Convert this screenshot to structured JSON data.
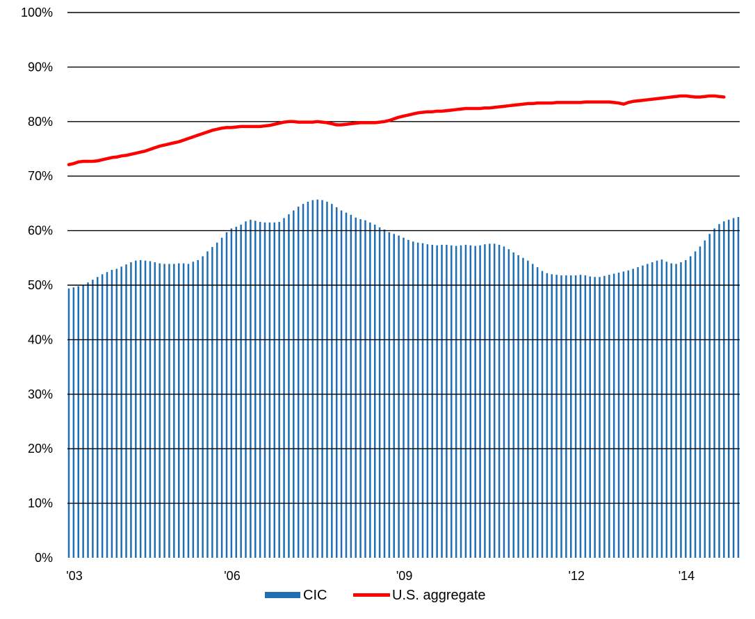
{
  "chart_data": {
    "type": "bar",
    "title": "",
    "xlabel": "",
    "ylabel": "",
    "ylim": [
      0,
      100
    ],
    "y_ticks": [
      "0%",
      "10%",
      "20%",
      "30%",
      "40%",
      "50%",
      "60%",
      "70%",
      "80%",
      "90%",
      "100%"
    ],
    "x_tick_labels": [
      {
        "label": "'03",
        "month_index": 0
      },
      {
        "label": "'06",
        "month_index": 33
      },
      {
        "label": "'09",
        "month_index": 69
      },
      {
        "label": "'12",
        "month_index": 105
      },
      {
        "label": "'14",
        "month_index": 128
      }
    ],
    "grid": true,
    "legend_position": "bottom",
    "series": [
      {
        "name": "CIC",
        "type": "bar",
        "color": "#1f6fb2",
        "values": [
          49.4,
          49.6,
          49.8,
          50.0,
          50.5,
          51.0,
          51.5,
          52.0,
          52.4,
          52.8,
          53.0,
          53.4,
          53.8,
          54.2,
          54.5,
          54.6,
          54.5,
          54.4,
          54.2,
          54.0,
          53.9,
          53.9,
          53.9,
          54.0,
          54.0,
          53.9,
          54.3,
          54.6,
          55.3,
          56.2,
          57.0,
          57.8,
          58.7,
          59.7,
          60.4,
          60.7,
          61.1,
          61.7,
          62.0,
          61.8,
          61.6,
          61.5,
          61.5,
          61.5,
          61.6,
          62.3,
          63.0,
          63.7,
          64.4,
          64.9,
          65.3,
          65.6,
          65.7,
          65.6,
          65.3,
          64.9,
          64.3,
          63.7,
          63.3,
          62.9,
          62.4,
          62.1,
          61.9,
          61.5,
          61.1,
          60.6,
          60.2,
          59.7,
          59.4,
          59.1,
          58.7,
          58.3,
          58.0,
          57.8,
          57.7,
          57.5,
          57.4,
          57.3,
          57.4,
          57.4,
          57.3,
          57.2,
          57.3,
          57.4,
          57.3,
          57.2,
          57.3,
          57.5,
          57.6,
          57.6,
          57.4,
          57.1,
          56.6,
          56.0,
          55.5,
          55.0,
          54.5,
          53.9,
          53.3,
          52.6,
          52.2,
          52.0,
          51.9,
          51.8,
          51.8,
          51.8,
          51.8,
          51.9,
          51.8,
          51.6,
          51.5,
          51.5,
          51.7,
          51.9,
          52.1,
          52.3,
          52.5,
          52.7,
          53.0,
          53.3,
          53.6,
          53.9,
          54.2,
          54.5,
          54.7,
          54.3,
          54.0,
          53.9,
          54.2,
          54.6,
          55.3,
          56.2,
          57.1,
          58.2,
          59.4,
          60.4,
          61.2,
          61.7,
          62.0,
          62.3,
          62.5
        ]
      },
      {
        "name": "U.S. aggregate",
        "type": "line",
        "color": "#ff0000",
        "values": [
          72.1,
          72.3,
          72.6,
          72.7,
          72.7,
          72.7,
          72.8,
          73.0,
          73.2,
          73.4,
          73.5,
          73.7,
          73.8,
          74.0,
          74.2,
          74.4,
          74.6,
          74.9,
          75.2,
          75.5,
          75.7,
          75.9,
          76.1,
          76.3,
          76.6,
          76.9,
          77.2,
          77.5,
          77.8,
          78.1,
          78.4,
          78.6,
          78.8,
          78.9,
          78.9,
          79.0,
          79.1,
          79.1,
          79.1,
          79.1,
          79.1,
          79.2,
          79.3,
          79.5,
          79.7,
          79.9,
          80.0,
          80.0,
          79.9,
          79.9,
          79.9,
          79.9,
          80.0,
          79.9,
          79.8,
          79.6,
          79.4,
          79.4,
          79.5,
          79.6,
          79.7,
          79.8,
          79.8,
          79.8,
          79.8,
          79.9,
          80.0,
          80.2,
          80.5,
          80.8,
          81.0,
          81.2,
          81.4,
          81.6,
          81.7,
          81.8,
          81.8,
          81.9,
          81.9,
          82.0,
          82.1,
          82.2,
          82.3,
          82.4,
          82.4,
          82.4,
          82.4,
          82.5,
          82.5,
          82.6,
          82.7,
          82.8,
          82.9,
          83.0,
          83.1,
          83.2,
          83.3,
          83.3,
          83.4,
          83.4,
          83.4,
          83.4,
          83.5,
          83.5,
          83.5,
          83.5,
          83.5,
          83.5,
          83.6,
          83.6,
          83.6,
          83.6,
          83.6,
          83.6,
          83.5,
          83.4,
          83.2,
          83.5,
          83.7,
          83.8,
          83.9,
          84.0,
          84.1,
          84.2,
          84.3,
          84.4,
          84.5,
          84.6,
          84.7,
          84.7,
          84.6,
          84.5,
          84.5,
          84.6,
          84.7,
          84.7,
          84.6,
          84.5
        ]
      }
    ]
  }
}
